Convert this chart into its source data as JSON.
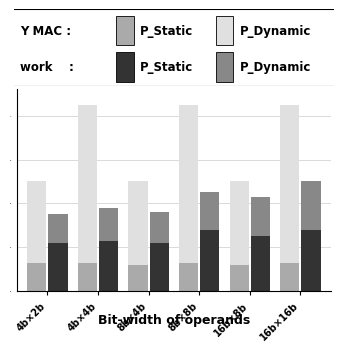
{
  "categories": [
    "4b×2b",
    "4b×4b",
    "8b×4b",
    "8b×8b",
    "16b×8b",
    "16b×16b"
  ],
  "mac_static": [
    0.13,
    0.13,
    0.12,
    0.13,
    0.12,
    0.13
  ],
  "mac_dynamic": [
    0.37,
    0.72,
    0.38,
    0.72,
    0.38,
    0.72
  ],
  "net_static": [
    0.22,
    0.23,
    0.22,
    0.28,
    0.25,
    0.28
  ],
  "net_dynamic": [
    0.13,
    0.15,
    0.14,
    0.17,
    0.18,
    0.22
  ],
  "mac_static_color": "#aaaaaa",
  "mac_dynamic_color": "#e0e0e0",
  "net_static_color": "#333333",
  "net_dynamic_color": "#888888",
  "xlabel": "Bit-width of operands",
  "bar_width": 0.38,
  "background_color": "#ffffff",
  "legend_row1_label": "Y MAC :",
  "legend_row2_label": "work    :",
  "legend_static_label": "P_Static",
  "legend_dynamic_label": "P_Dynamic",
  "ylim_max": 0.92
}
